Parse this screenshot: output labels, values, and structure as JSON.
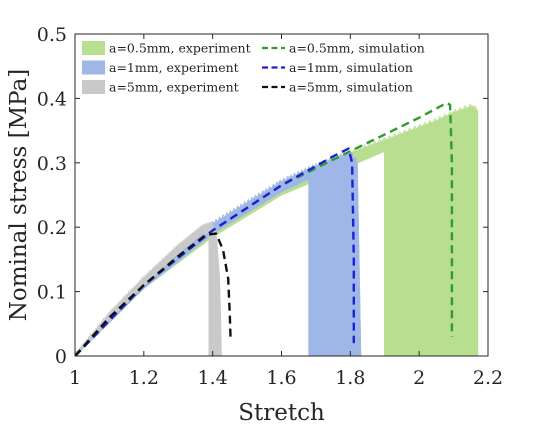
{
  "chart_data": {
    "type": "line",
    "title": "",
    "xlabel": "Stretch",
    "ylabel": "Nominal stress [MPa]",
    "xlim": [
      1,
      2.2
    ],
    "ylim": [
      0,
      0.5
    ],
    "xticks": [
      "1",
      "1.2",
      "1.4",
      "1.6",
      "1.8",
      "2",
      "2.2"
    ],
    "yticks": [
      "0",
      "0.1",
      "0.2",
      "0.3",
      "0.4",
      "0.5"
    ],
    "grid": false,
    "legend_placement": "top-left",
    "series": [
      {
        "name": "a=0.5mm, experiment",
        "style": "band",
        "color": "#b8de8f",
        "x": [
          1.0,
          1.2,
          1.4,
          1.6,
          1.8,
          1.9,
          2.0,
          2.05,
          2.1,
          2.14,
          2.155,
          2.16,
          2.17
        ],
        "upper": [
          0.0,
          0.115,
          0.2,
          0.27,
          0.315,
          0.335,
          0.355,
          0.365,
          0.378,
          0.385,
          0.388,
          0.385,
          0.38
        ],
        "lower": [
          0.0,
          0.105,
          0.185,
          0.25,
          0.295,
          0.318,
          0.34,
          0.35,
          0.36,
          0.365,
          0.365,
          0.2,
          0.0
        ],
        "drop_start_x": 1.9
      },
      {
        "name": "a=1mm, experiment",
        "style": "band",
        "color": "#9fb7e6",
        "x": [
          1.0,
          1.2,
          1.4,
          1.6,
          1.68,
          1.75,
          1.8,
          1.82,
          1.83
        ],
        "upper": [
          0.0,
          0.115,
          0.205,
          0.27,
          0.29,
          0.305,
          0.315,
          0.3,
          0.0
        ],
        "lower": [
          0.0,
          0.105,
          0.19,
          0.255,
          0.275,
          0.29,
          0.3,
          0.28,
          0.0
        ],
        "drop_start_x": 1.68
      },
      {
        "name": "a=5mm, experiment",
        "style": "band",
        "color": "#c9c9c9",
        "x": [
          1.0,
          1.1,
          1.2,
          1.3,
          1.37,
          1.395,
          1.41,
          1.42,
          1.425
        ],
        "upper": [
          0.0,
          0.065,
          0.12,
          0.17,
          0.2,
          0.205,
          0.19,
          0.12,
          0.0
        ],
        "lower": [
          0.0,
          0.055,
          0.11,
          0.16,
          0.19,
          0.19,
          0.17,
          0.1,
          0.0
        ],
        "drop_start_x": 1.39
      },
      {
        "name": "a=0.5mm, simulation",
        "style": "dashed",
        "color": "#2f9c2f",
        "x": [
          1.0,
          1.2,
          1.4,
          1.6,
          1.8,
          2.0,
          2.08,
          2.09,
          2.095,
          2.095
        ],
        "y": [
          0.0,
          0.11,
          0.195,
          0.265,
          0.318,
          0.37,
          0.393,
          0.39,
          0.3,
          0.03
        ]
      },
      {
        "name": "a=1mm, simulation",
        "style": "dashed",
        "color": "#1f1fd6",
        "x": [
          1.0,
          1.2,
          1.4,
          1.6,
          1.75,
          1.795,
          1.805,
          1.81,
          1.81
        ],
        "y": [
          0.0,
          0.11,
          0.195,
          0.265,
          0.31,
          0.322,
          0.3,
          0.15,
          0.02
        ]
      },
      {
        "name": "a=5mm, simulation",
        "style": "dashed",
        "color": "#111111",
        "x": [
          1.0,
          1.1,
          1.2,
          1.3,
          1.38,
          1.41,
          1.43,
          1.445,
          1.45,
          1.452
        ],
        "y": [
          0.0,
          0.06,
          0.11,
          0.155,
          0.188,
          0.19,
          0.165,
          0.12,
          0.06,
          0.025
        ]
      }
    ]
  }
}
